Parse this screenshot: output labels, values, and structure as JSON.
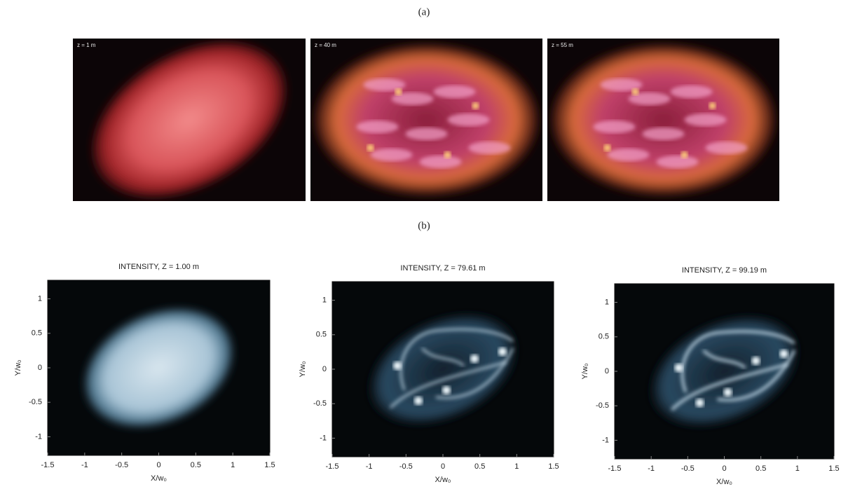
{
  "figure_a": {
    "label": "(a)",
    "panels": [
      {
        "label": "z = 1 m"
      },
      {
        "label": "z = 40 m"
      },
      {
        "label": "z = 55 m"
      }
    ]
  },
  "figure_b": {
    "label": "(b)",
    "xlim": [
      -1.5,
      1.5
    ],
    "ylim": [
      -1.27,
      1.27
    ],
    "xticks": [
      -1.5,
      -1,
      -0.5,
      0,
      0.5,
      1,
      1.5
    ],
    "yticks": [
      1,
      0.5,
      0,
      -0.5,
      -1
    ],
    "xlabel": "X/w₀",
    "ylabel": "Y/w₀",
    "panels": [
      {
        "title": "INTENSITY, Z = 1.00 m"
      },
      {
        "title": "INTENSITY, Z = 79.61 m"
      },
      {
        "title": "INTENSITY, Z = 99.19 m"
      }
    ]
  }
}
